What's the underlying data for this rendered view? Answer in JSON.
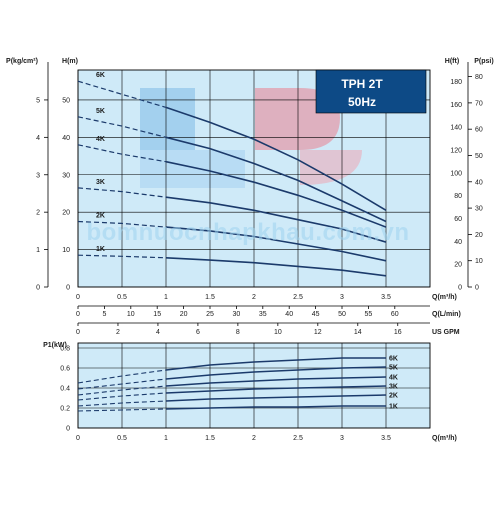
{
  "chart_data": [
    {
      "type": "line",
      "title": "TPH 2T",
      "subtitle": "50Hz",
      "left_axis_outer": {
        "label": "P(kg/cm²)",
        "ticks": [
          "0",
          "1",
          "2",
          "3",
          "4",
          "5"
        ],
        "range": [
          0,
          5.8
        ]
      },
      "left_axis_inner": {
        "label": "H(m)",
        "ticks": [
          "0",
          "10",
          "20",
          "30",
          "40",
          "50"
        ],
        "range": [
          0,
          58
        ]
      },
      "right_axis_inner": {
        "label": "H(ft)",
        "ticks": [
          "0",
          "20",
          "40",
          "60",
          "80",
          "100",
          "120",
          "140",
          "160",
          "180"
        ],
        "range": [
          0,
          190
        ]
      },
      "right_axis_outer": {
        "label": "P(psi)",
        "ticks": [
          "0",
          "10",
          "20",
          "30",
          "40",
          "50",
          "60",
          "70",
          "80"
        ],
        "range": [
          0,
          82.5
        ]
      },
      "x_axes": [
        {
          "label": "Q(m³/h)",
          "ticks": [
            "0",
            "0.5",
            "1",
            "1.5",
            "2",
            "2.5",
            "3",
            "3.5"
          ],
          "range": [
            0,
            4
          ]
        },
        {
          "label": "Q(L/min)",
          "ticks": [
            "0",
            "5",
            "10",
            "15",
            "20",
            "25",
            "30",
            "35",
            "40",
            "45",
            "50",
            "55",
            "60"
          ]
        },
        {
          "label": "US GPM",
          "ticks": [
            "0",
            "2",
            "4",
            "6",
            "8",
            "10",
            "12",
            "14",
            "16"
          ]
        }
      ],
      "dashed_until_x": 1,
      "series": [
        {
          "name": "6K",
          "x": [
            0,
            0.5,
            1,
            1.5,
            2,
            2.5,
            3,
            3.5
          ],
          "y": [
            55,
            51.5,
            48,
            44,
            39.5,
            34,
            27.5,
            20.5
          ]
        },
        {
          "name": "5K",
          "x": [
            0,
            0.5,
            1,
            1.5,
            2,
            2.5,
            3,
            3.5
          ],
          "y": [
            45.5,
            43,
            40,
            37,
            33,
            28.5,
            23,
            17.5
          ]
        },
        {
          "name": "4K",
          "x": [
            0,
            0.5,
            1,
            1.5,
            2,
            2.5,
            3,
            3.5
          ],
          "y": [
            38,
            35.5,
            33.5,
            31,
            28,
            24.5,
            20.5,
            16
          ]
        },
        {
          "name": "3K",
          "x": [
            0,
            0.5,
            1,
            1.5,
            2,
            2.5,
            3,
            3.5
          ],
          "y": [
            26.5,
            25.5,
            24,
            22.5,
            20.5,
            18,
            15.5,
            12
          ]
        },
        {
          "name": "2K",
          "x": [
            0,
            0.5,
            1,
            1.5,
            2,
            2.5,
            3,
            3.5
          ],
          "y": [
            17.5,
            17,
            16,
            15,
            13.5,
            11.5,
            9.5,
            7
          ]
        },
        {
          "name": "1K",
          "x": [
            0,
            0.5,
            1,
            1.5,
            2,
            2.5,
            3,
            3.5
          ],
          "y": [
            8.5,
            8.2,
            7.8,
            7.2,
            6.5,
            5.5,
            4.5,
            3
          ]
        }
      ],
      "grid": true,
      "watermark": "bomnuocnhapkhau.com.vn"
    },
    {
      "type": "line",
      "ylabel": "P1(kW)",
      "yticks": [
        "0",
        "0.2",
        "0.4",
        "0.6",
        "0.8"
      ],
      "ylim": [
        0,
        0.85
      ],
      "xlabel": "Q(m³/h)",
      "xticks": [
        "0",
        "0.5",
        "1",
        "1.5",
        "2",
        "2.5",
        "3",
        "3.5"
      ],
      "xlim": [
        0,
        4
      ],
      "dashed_until_x": 1,
      "series": [
        {
          "name": "6K",
          "x": [
            0,
            0.5,
            1,
            1.5,
            2,
            2.5,
            3,
            3.5
          ],
          "y": [
            0.45,
            0.52,
            0.58,
            0.63,
            0.66,
            0.68,
            0.7,
            0.7
          ]
        },
        {
          "name": "5K",
          "x": [
            0,
            0.5,
            1,
            1.5,
            2,
            2.5,
            3,
            3.5
          ],
          "y": [
            0.39,
            0.44,
            0.49,
            0.53,
            0.56,
            0.58,
            0.6,
            0.61
          ]
        },
        {
          "name": "4K",
          "x": [
            0,
            0.5,
            1,
            1.5,
            2,
            2.5,
            3,
            3.5
          ],
          "y": [
            0.33,
            0.38,
            0.42,
            0.45,
            0.47,
            0.49,
            0.5,
            0.51
          ]
        },
        {
          "name": "3K",
          "x": [
            0,
            0.5,
            1,
            1.5,
            2,
            2.5,
            3,
            3.5
          ],
          "y": [
            0.28,
            0.32,
            0.35,
            0.37,
            0.39,
            0.4,
            0.41,
            0.42
          ]
        },
        {
          "name": "2K",
          "x": [
            0,
            0.5,
            1,
            1.5,
            2,
            2.5,
            3,
            3.5
          ],
          "y": [
            0.22,
            0.25,
            0.27,
            0.29,
            0.3,
            0.31,
            0.32,
            0.33
          ]
        },
        {
          "name": "1K",
          "x": [
            0,
            0.5,
            1,
            1.5,
            2,
            2.5,
            3,
            3.5
          ],
          "y": [
            0.17,
            0.18,
            0.19,
            0.2,
            0.21,
            0.21,
            0.22,
            0.22
          ]
        }
      ],
      "grid": true
    }
  ],
  "colors": {
    "background": "#cfeaf8",
    "curve": "#1b3a6b",
    "badge": "#0d4a86",
    "grid": "#000000"
  }
}
